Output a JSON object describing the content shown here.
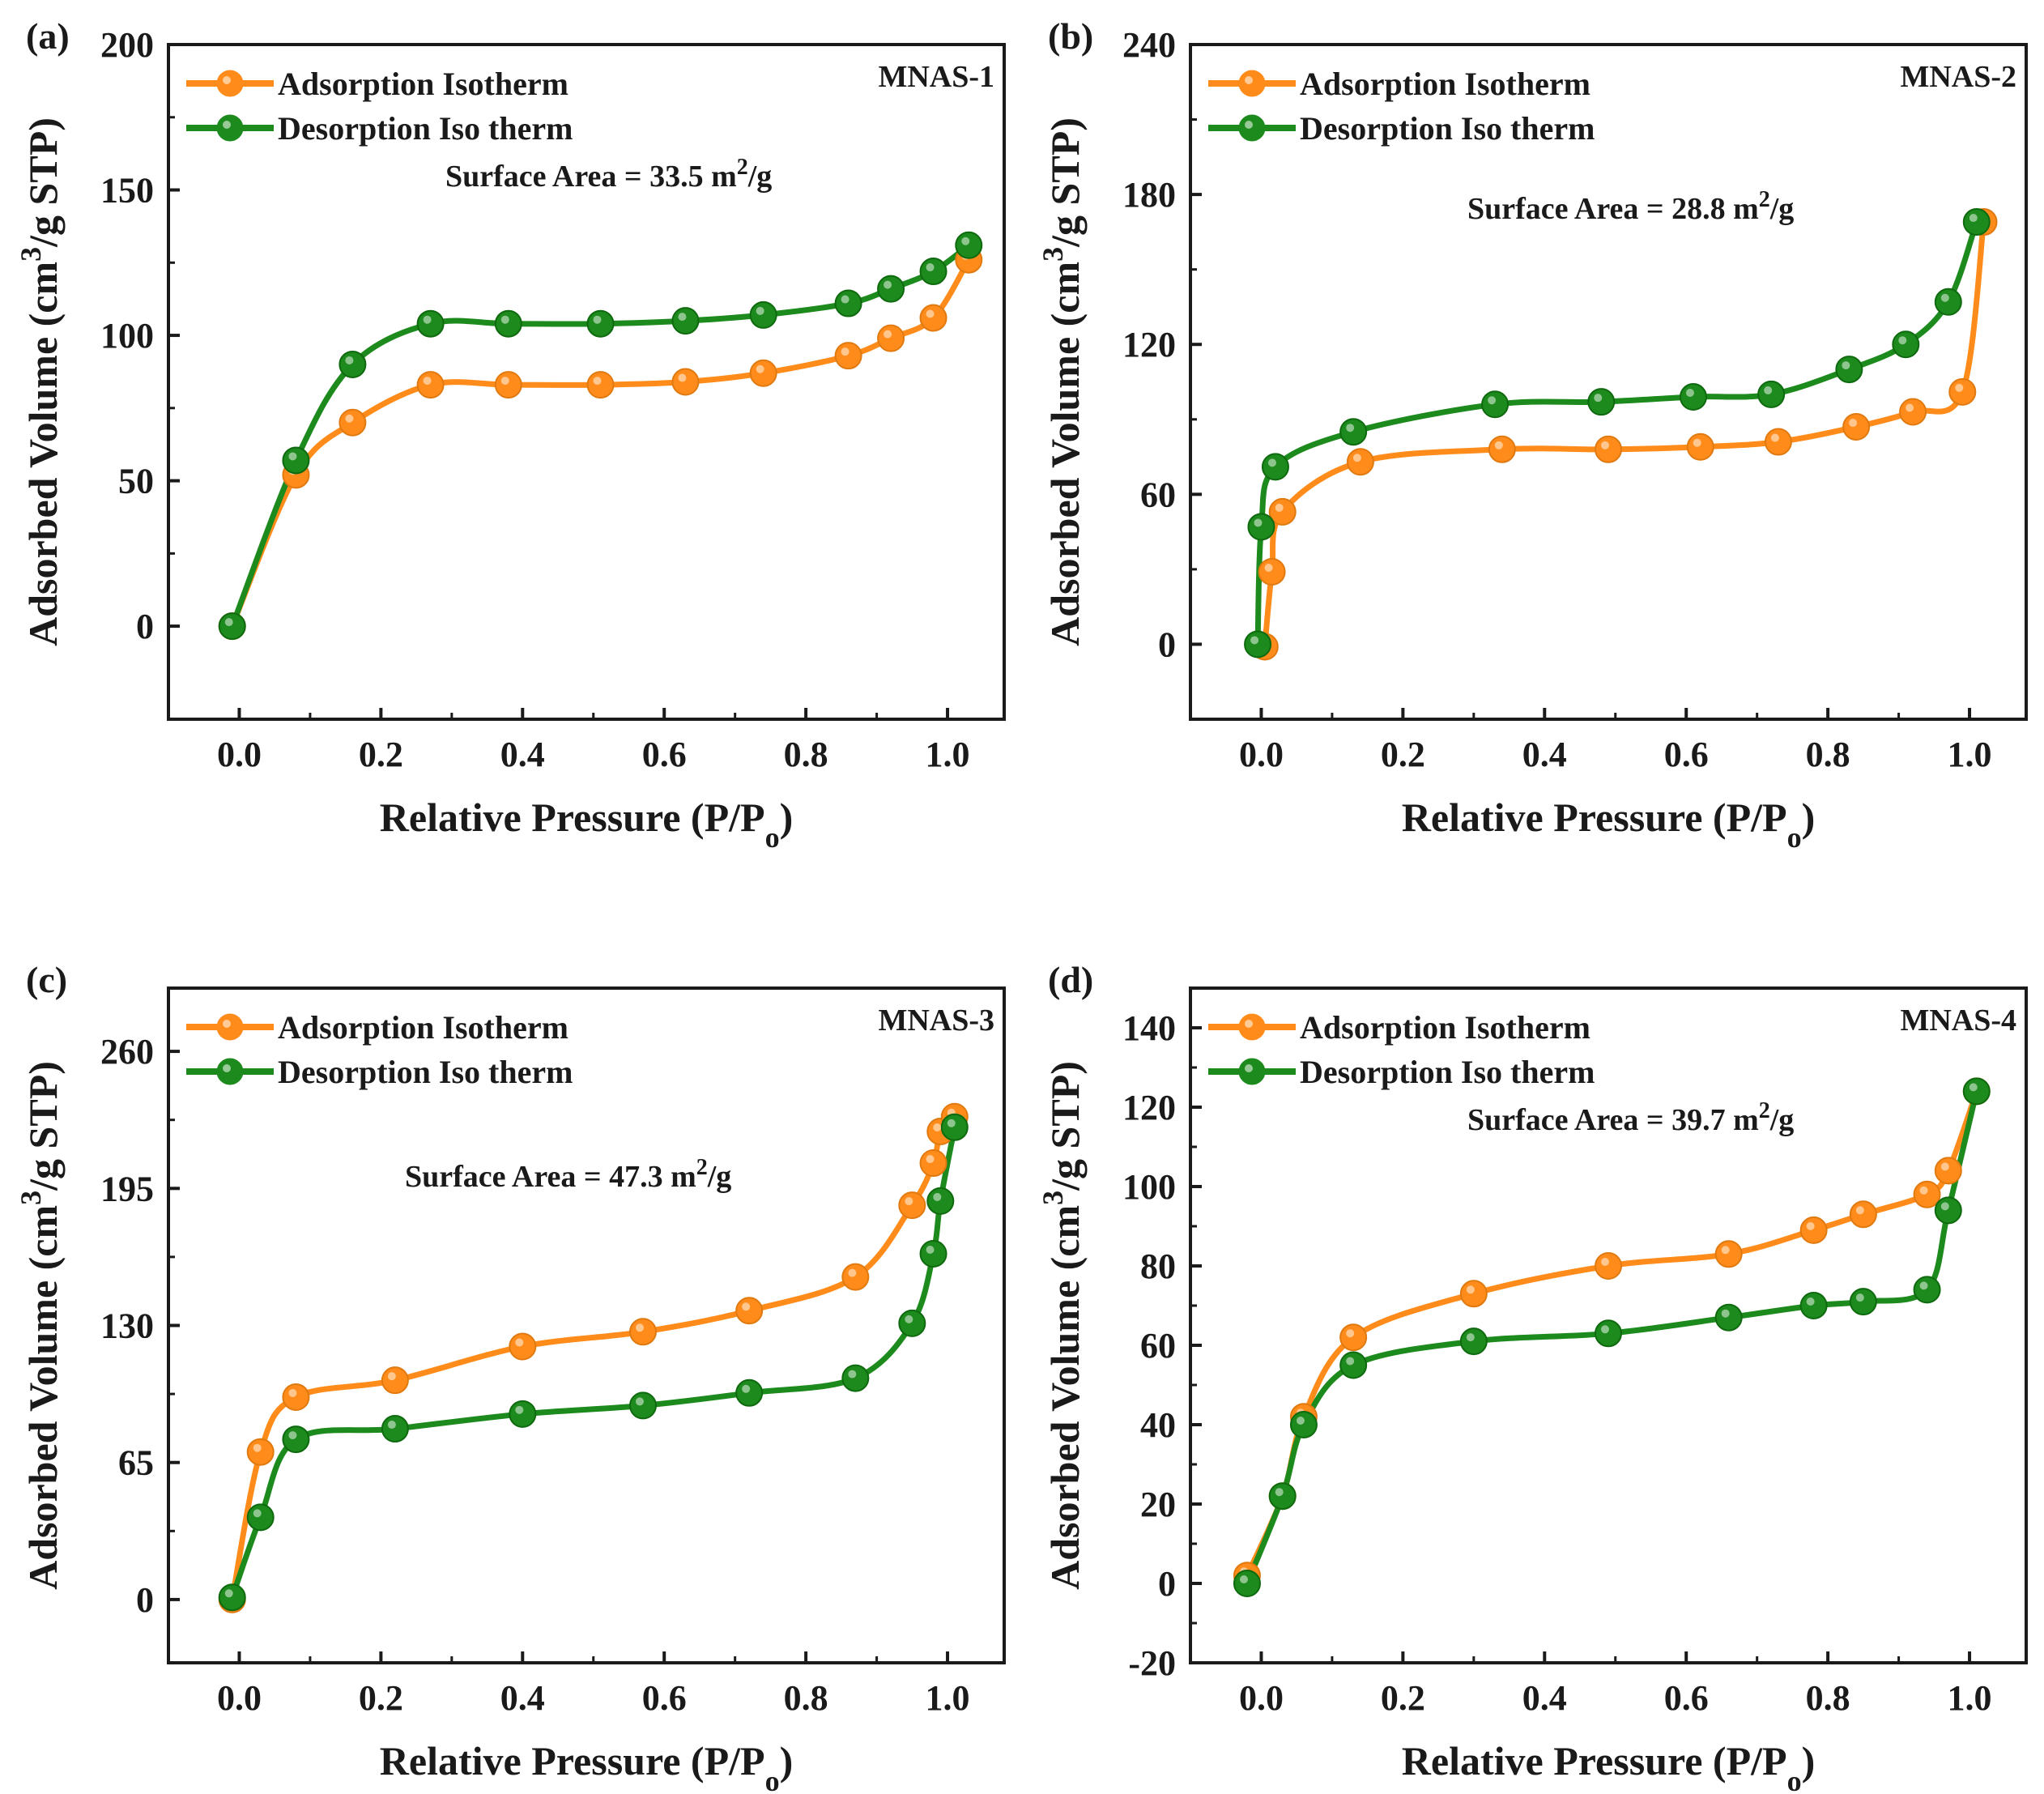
{
  "colors": {
    "adsorption": "#ff8c1a",
    "desorption": "#1c8a1c",
    "axis": "#1a1a1a"
  },
  "legend_labels": {
    "adsorption": "Adsorption Isotherm",
    "desorption": "Desorption Iso therm"
  },
  "axis_labels": {
    "x_prefix": "Relative Pressure (P/P",
    "x_subscript": "o",
    "x_suffix": ")",
    "y_prefix": "Adsorbed Volume (cm",
    "y_superscript": "3",
    "y_suffix": "/g STP)"
  },
  "chart_data": [
    {
      "type": "line",
      "panel_label": "(a)",
      "sample": "MNAS-1",
      "annotation": {
        "prefix": "Surface Area = 33.5 m",
        "superscript": "2",
        "suffix": "/g"
      },
      "xlim": [
        -0.1,
        1.08
      ],
      "ylim": [
        -32,
        200
      ],
      "x_ticks": [
        "0.0",
        "0.2",
        "0.4",
        "0.6",
        "0.8",
        "1.0"
      ],
      "x_tick_values": [
        0,
        0.2,
        0.4,
        0.6,
        0.8,
        1.0
      ],
      "y_ticks": [
        "0",
        "50",
        "100",
        "150",
        "200"
      ],
      "y_tick_values": [
        0,
        50,
        100,
        150,
        200
      ],
      "legend_position": "top-left",
      "series": [
        {
          "name": "Adsorption Isotherm",
          "x": [
            -0.01,
            0.08,
            0.16,
            0.27,
            0.38,
            0.51,
            0.63,
            0.74,
            0.86,
            0.92,
            0.98,
            1.03
          ],
          "y": [
            0,
            52,
            70,
            83,
            83,
            83,
            84,
            87,
            93,
            99,
            106,
            126
          ]
        },
        {
          "name": "Desorption Iso therm",
          "x": [
            -0.01,
            0.08,
            0.16,
            0.27,
            0.38,
            0.51,
            0.63,
            0.74,
            0.86,
            0.92,
            0.98,
            1.03
          ],
          "y": [
            0,
            57,
            90,
            104,
            104,
            104,
            105,
            107,
            111,
            116,
            122,
            131
          ]
        }
      ]
    },
    {
      "type": "line",
      "panel_label": "(b)",
      "sample": "MNAS-2",
      "annotation": {
        "prefix": "Surface Area = 28.8 m",
        "superscript": "2",
        "suffix": "/g"
      },
      "xlim": [
        -0.1,
        1.08
      ],
      "ylim": [
        -30,
        240
      ],
      "x_ticks": [
        "0.0",
        "0.2",
        "0.4",
        "0.6",
        "0.8",
        "1.0"
      ],
      "x_tick_values": [
        0,
        0.2,
        0.4,
        0.6,
        0.8,
        1.0
      ],
      "y_ticks": [
        "0",
        "60",
        "120",
        "180",
        "240"
      ],
      "y_tick_values": [
        0,
        60,
        120,
        180,
        240
      ],
      "legend_position": "top-left",
      "series": [
        {
          "name": "Adsorption Isotherm",
          "x": [
            0.005,
            0.015,
            0.03,
            0.14,
            0.34,
            0.49,
            0.62,
            0.73,
            0.84,
            0.92,
            0.99,
            1.02
          ],
          "y": [
            -1,
            29,
            53,
            73,
            78,
            78,
            79,
            81,
            87,
            93,
            101,
            169
          ]
        },
        {
          "name": "Desorption Iso therm",
          "x": [
            -0.005,
            0.0,
            0.02,
            0.13,
            0.33,
            0.48,
            0.61,
            0.72,
            0.83,
            0.91,
            0.97,
            1.01
          ],
          "y": [
            0,
            47,
            71,
            85,
            96,
            97,
            99,
            100,
            110,
            120,
            137,
            169
          ]
        }
      ]
    },
    {
      "type": "line",
      "panel_label": "(c)",
      "sample": "MNAS-3",
      "annotation": {
        "prefix": "Surface Area = 47.3 m",
        "superscript": "2",
        "suffix": "/g"
      },
      "xlim": [
        -0.1,
        1.08
      ],
      "ylim": [
        -30,
        290
      ],
      "x_ticks": [
        "0.0",
        "0.2",
        "0.4",
        "0.6",
        "0.8",
        "1.0"
      ],
      "x_tick_values": [
        0,
        0.2,
        0.4,
        0.6,
        0.8,
        1.0
      ],
      "y_ticks": [
        "0",
        "65",
        "130",
        "195",
        "260"
      ],
      "y_tick_values": [
        0,
        65,
        130,
        195,
        260
      ],
      "legend_position": "top-left",
      "series": [
        {
          "name": "Adsorption Isotherm",
          "x": [
            -0.01,
            0.03,
            0.08,
            0.22,
            0.4,
            0.57,
            0.72,
            0.87,
            0.95,
            0.98,
            0.99,
            1.01
          ],
          "y": [
            0,
            70,
            96,
            104,
            120,
            127,
            137,
            153,
            187,
            207,
            222,
            229
          ]
        },
        {
          "name": "Desorption Iso therm",
          "x": [
            -0.01,
            0.03,
            0.08,
            0.22,
            0.4,
            0.57,
            0.72,
            0.87,
            0.95,
            0.98,
            0.99,
            1.01
          ],
          "y": [
            1,
            39,
            76,
            81,
            88,
            92,
            98,
            105,
            131,
            164,
            189,
            224
          ]
        }
      ]
    },
    {
      "type": "line",
      "panel_label": "(d)",
      "sample": "MNAS-4",
      "annotation": {
        "prefix": "Surface Area = 39.7 m",
        "superscript": "2",
        "suffix": "/g"
      },
      "xlim": [
        -0.1,
        1.08
      ],
      "ylim": [
        -20,
        150
      ],
      "x_ticks": [
        "0.0",
        "0.2",
        "0.4",
        "0.6",
        "0.8",
        "1.0"
      ],
      "x_tick_values": [
        0,
        0.2,
        0.4,
        0.6,
        0.8,
        1.0
      ],
      "y_ticks": [
        "-20",
        "0",
        "20",
        "40",
        "60",
        "80",
        "100",
        "120",
        "140"
      ],
      "y_tick_values": [
        -20,
        0,
        20,
        40,
        60,
        80,
        100,
        120,
        140
      ],
      "legend_position": "top-left",
      "series": [
        {
          "name": "Adsorption Isotherm",
          "x": [
            -0.02,
            0.03,
            0.06,
            0.13,
            0.3,
            0.49,
            0.66,
            0.78,
            0.85,
            0.94,
            0.97,
            1.01
          ],
          "y": [
            2,
            22,
            42,
            62,
            73,
            80,
            83,
            89,
            93,
            98,
            104,
            124
          ]
        },
        {
          "name": "Desorption Iso therm",
          "x": [
            -0.02,
            0.03,
            0.06,
            0.13,
            0.3,
            0.49,
            0.66,
            0.78,
            0.85,
            0.94,
            0.97,
            1.01
          ],
          "y": [
            0,
            22,
            40,
            55,
            61,
            63,
            67,
            70,
            71,
            74,
            94,
            124
          ]
        }
      ]
    }
  ]
}
